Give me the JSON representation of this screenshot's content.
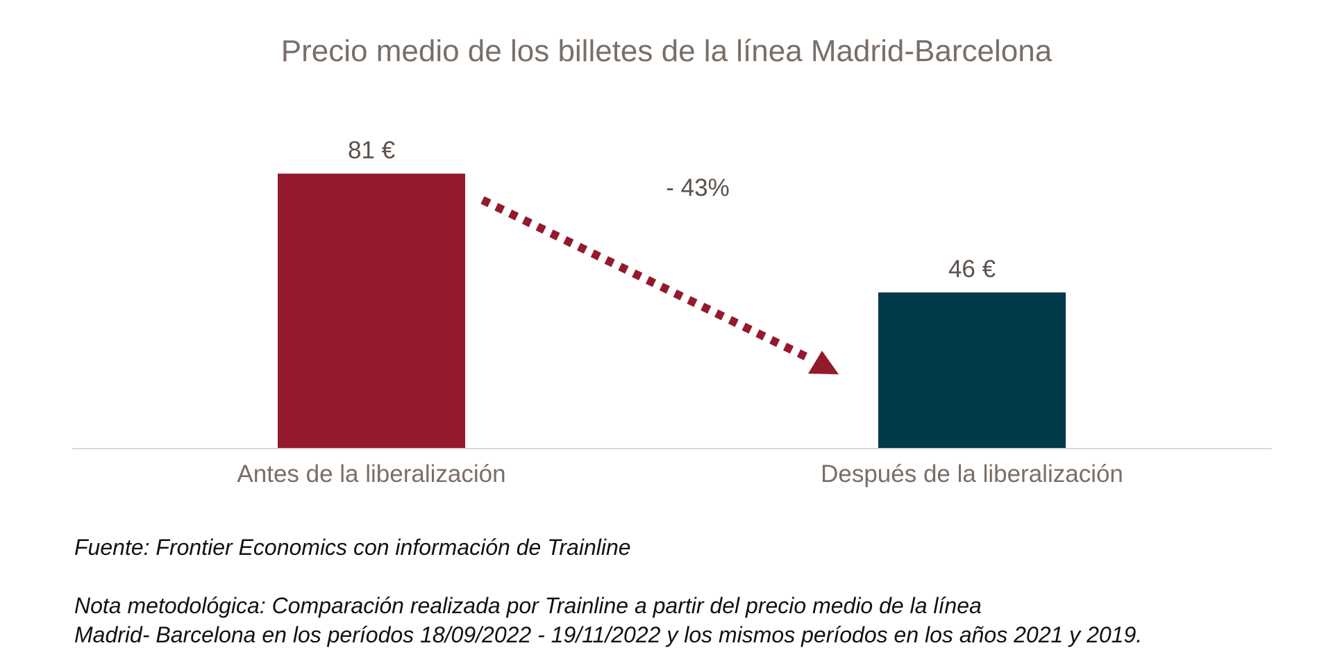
{
  "chart_data": {
    "type": "bar",
    "title": "Precio medio de los billetes de la línea Madrid-Barcelona",
    "categories": [
      "Antes de la liberalización",
      "Después de la liberalización"
    ],
    "values": [
      81,
      46
    ],
    "value_labels": [
      "81 €",
      "46 €"
    ],
    "bar_colors": [
      "#931a2d",
      "#003a4b"
    ],
    "annotation": {
      "text": "- 43%",
      "arrow_color": "#931a2d",
      "arrow_style": "dotted"
    },
    "ylim": [
      0,
      81
    ],
    "grid": false,
    "legend": "none",
    "xlabel": "",
    "ylabel": ""
  },
  "footer": {
    "source": "Fuente: Frontier Economics con información de Trainline",
    "note_line1": "Nota metodológica: Comparación realizada por Trainline a partir del precio medio de la línea",
    "note_line2": "Madrid- Barcelona en los períodos 18/09/2022 - 19/11/2022 y los mismos períodos en los años 2021 y 2019."
  }
}
